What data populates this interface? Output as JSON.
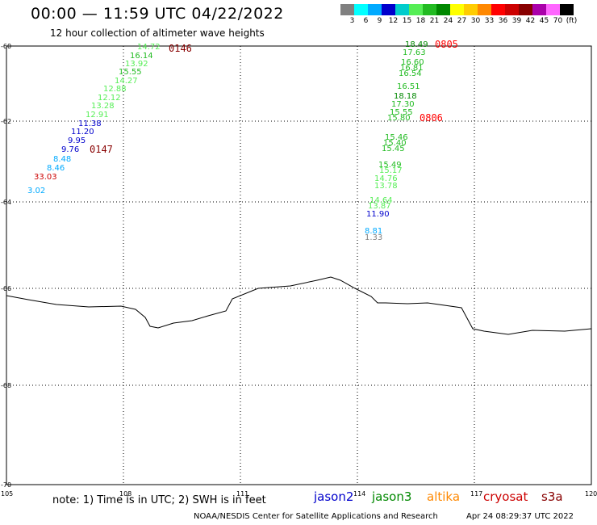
{
  "header": {
    "title": "00:00 — 11:59 UTC 04/22/2022",
    "subtitle": "12 hour collection of altimeter wave heights"
  },
  "color_scale": {
    "swatches": [
      "#808080",
      "#00ffff",
      "#00aaff",
      "#0000cc",
      "#00cccc",
      "#55ee55",
      "#22bb22",
      "#008800",
      "#ffff00",
      "#ffcc00",
      "#ff8800",
      "#ff0000",
      "#cc0000",
      "#880000",
      "#aa00aa",
      "#ff66ff",
      "#000000"
    ],
    "labels": [
      "3",
      "6",
      "9",
      "12",
      "15",
      "18",
      "21",
      "24",
      "27",
      "30",
      "33",
      "36",
      "39",
      "42",
      "45",
      "70",
      "(ft)"
    ]
  },
  "axes": {
    "lat_labels": [
      "-60",
      "-62",
      "-64",
      "-66",
      "-68",
      "-70"
    ],
    "lon_labels": [
      "105",
      "108",
      "111",
      "114",
      "117",
      "120"
    ]
  },
  "tracks": [
    {
      "time_label": "0146",
      "time_color": "#880000",
      "points": [
        {
          "v": "14.72",
          "c": "#55ee55"
        },
        {
          "v": "16.14",
          "c": "#22bb22"
        },
        {
          "v": "13.92",
          "c": "#55ee55"
        },
        {
          "v": "15.55",
          "c": "#22bb22"
        },
        {
          "v": "14.27",
          "c": "#55ee55"
        },
        {
          "v": "12.88",
          "c": "#55ee55"
        },
        {
          "v": "12.12",
          "c": "#55ee55"
        },
        {
          "v": "13.28",
          "c": "#55ee55"
        },
        {
          "v": "12.91",
          "c": "#55ee55"
        },
        {
          "v": "11.38",
          "c": "#0000cc"
        },
        {
          "v": "11.20",
          "c": "#0000cc"
        },
        {
          "v": "9.95",
          "c": "#0000cc"
        },
        {
          "v": "9.76",
          "c": "#0000cc"
        },
        {
          "v": "8.48",
          "c": "#00aaff"
        },
        {
          "v": "8.46",
          "c": "#00aaff"
        },
        {
          "v": "33.03",
          "c": "#cc0000"
        },
        {
          "v": "3.02",
          "c": "#00aaff"
        }
      ]
    },
    {
      "time_label": "0147",
      "time_color": "#880000"
    },
    {
      "time_label": "0805",
      "time_color": "#ff0000",
      "points": [
        {
          "v": "18.49",
          "c": "#008800"
        },
        {
          "v": "17.63",
          "c": "#22bb22"
        },
        {
          "v": "16.60",
          "c": "#22bb22"
        },
        {
          "v": "16.81",
          "c": "#22bb22"
        },
        {
          "v": "16.54",
          "c": "#22bb22"
        },
        {
          "v": "16.51",
          "c": "#22bb22"
        },
        {
          "v": "18.18",
          "c": "#008800"
        },
        {
          "v": "17.30",
          "c": "#22bb22"
        },
        {
          "v": "15.55",
          "c": "#22bb22"
        },
        {
          "v": "15.80",
          "c": "#22bb22"
        },
        {
          "v": "15.46",
          "c": "#22bb22"
        },
        {
          "v": "15.40",
          "c": "#22bb22"
        },
        {
          "v": "15.45",
          "c": "#22bb22"
        },
        {
          "v": "15.49",
          "c": "#22bb22"
        },
        {
          "v": "15.17",
          "c": "#55ee55"
        },
        {
          "v": "14.76",
          "c": "#55ee55"
        },
        {
          "v": "13.78",
          "c": "#55ee55"
        },
        {
          "v": "14.64",
          "c": "#55ee55"
        },
        {
          "v": "13.87",
          "c": "#55ee55"
        },
        {
          "v": "11.90",
          "c": "#0000cc"
        },
        {
          "v": "8.81",
          "c": "#00aaff"
        },
        {
          "v": "1.33",
          "c": "#808080"
        }
      ]
    },
    {
      "time_label": "0806",
      "time_color": "#ff0000"
    }
  ],
  "footer": {
    "note": "note: 1) Time is in UTC; 2) SWH is in feet",
    "satellites": [
      {
        "name": "jason2",
        "color": "#0000cc"
      },
      {
        "name": "jason3",
        "color": "#008800"
      },
      {
        "name": "altika",
        "color": "#ff8800"
      },
      {
        "name": "cryosat",
        "color": "#cc0000"
      },
      {
        "name": "s3a",
        "color": "#880000"
      }
    ],
    "credit": "NOAA/NESDIS Center for Satellite Applications and Research",
    "generated": "Apr 24 08:29:37 UTC 2022"
  }
}
